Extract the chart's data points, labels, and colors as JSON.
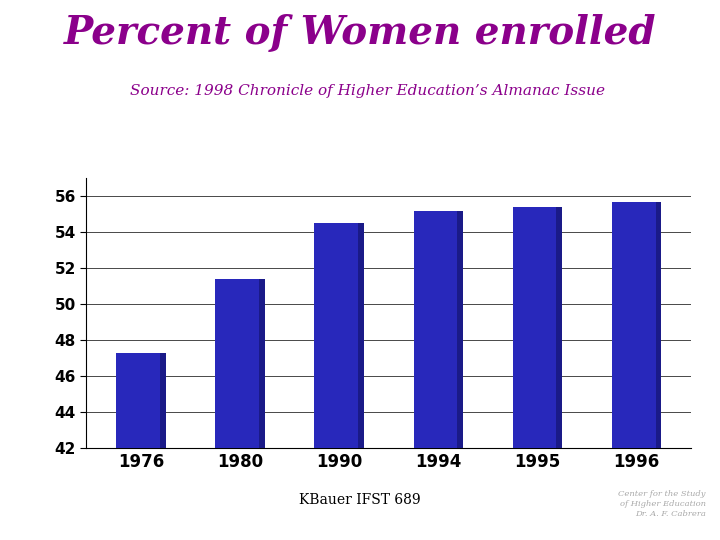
{
  "title": "Percent of Women enrolled",
  "subtitle": "Source: 1998 Chronicle of Higher Education’s Almanac Issue",
  "footer": "KBauer IFST 689",
  "footer2_line1": "Center for the Study",
  "footer2_line2": "of Higher Education",
  "footer2_line3": "Dr. A. F. Cabrera",
  "categories": [
    "1976",
    "1980",
    "1990",
    "1994",
    "1995",
    "1996"
  ],
  "values": [
    47.3,
    51.4,
    54.5,
    55.2,
    55.4,
    55.7
  ],
  "bar_color": "#2828BB",
  "bar_color_dark": "#1a1a88",
  "ylim": [
    42,
    57
  ],
  "yticks": [
    42,
    44,
    46,
    48,
    50,
    52,
    54,
    56
  ],
  "background_color": "#ffffff",
  "title_color": "#8B008B",
  "subtitle_color": "#8B008B",
  "title_fontsize": 28,
  "subtitle_fontsize": 11,
  "tick_fontsize": 11,
  "xtick_fontsize": 12,
  "footer_fontsize": 10,
  "footer2_fontsize": 6,
  "bar_width": 0.5
}
